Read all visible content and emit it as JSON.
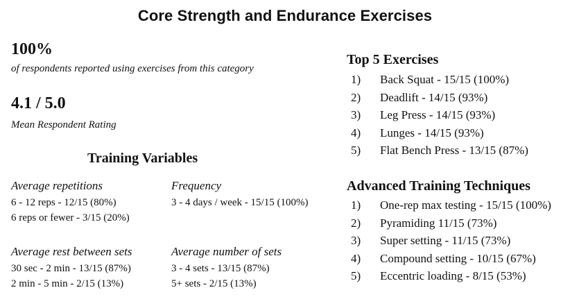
{
  "title": "Core Strength and Endurance Exercises",
  "usage": {
    "value": "100%",
    "caption": "of respondents reported using exercises from this category"
  },
  "rating": {
    "value": "4.1 / 5.0",
    "caption": "Mean Respondent Rating"
  },
  "training_variables": {
    "heading": "Training Variables",
    "repetitions": {
      "label": "Average repetitions",
      "lines": [
        "6 - 12 reps - 12/15 (80%)",
        "6 reps or fewer - 3/15 (20%)"
      ]
    },
    "frequency": {
      "label": "Frequency",
      "lines": [
        "3 - 4 days / week - 15/15 (100%)"
      ]
    },
    "rest": {
      "label": "Average rest between sets",
      "lines": [
        "30 sec - 2 min - 13/15 (87%)",
        "2 min - 5 min - 2/15 (13%)"
      ]
    },
    "sets": {
      "label": "Average number of sets",
      "lines": [
        "3 - 4 sets - 13/15 (87%)",
        "5+ sets - 2/15 (13%)"
      ]
    }
  },
  "top_exercises": {
    "heading": "Top 5 Exercises",
    "items": [
      {
        "num": "1)",
        "text": "Back Squat - 15/15 (100%)"
      },
      {
        "num": "2)",
        "text": "Deadlift - 14/15 (93%)"
      },
      {
        "num": "3)",
        "text": "Leg Press - 14/15 (93%)"
      },
      {
        "num": "4)",
        "text": "Lunges - 14/15 (93%)"
      },
      {
        "num": "5)",
        "text": "Flat Bench Press - 13/15 (87%)"
      }
    ]
  },
  "advanced_techniques": {
    "heading": "Advanced Training Techniques",
    "items": [
      {
        "num": "1)",
        "text": "One-rep max testing - 15/15 (100%)"
      },
      {
        "num": "2)",
        "text": "Pyramiding 11/15 (73%)"
      },
      {
        "num": "3)",
        "text": "Super setting - 11/15 (73%)"
      },
      {
        "num": "4)",
        "text": "Compound setting - 10/15 (67%)"
      },
      {
        "num": "5)",
        "text": "Eccentric loading - 8/15 (53%)"
      }
    ]
  }
}
